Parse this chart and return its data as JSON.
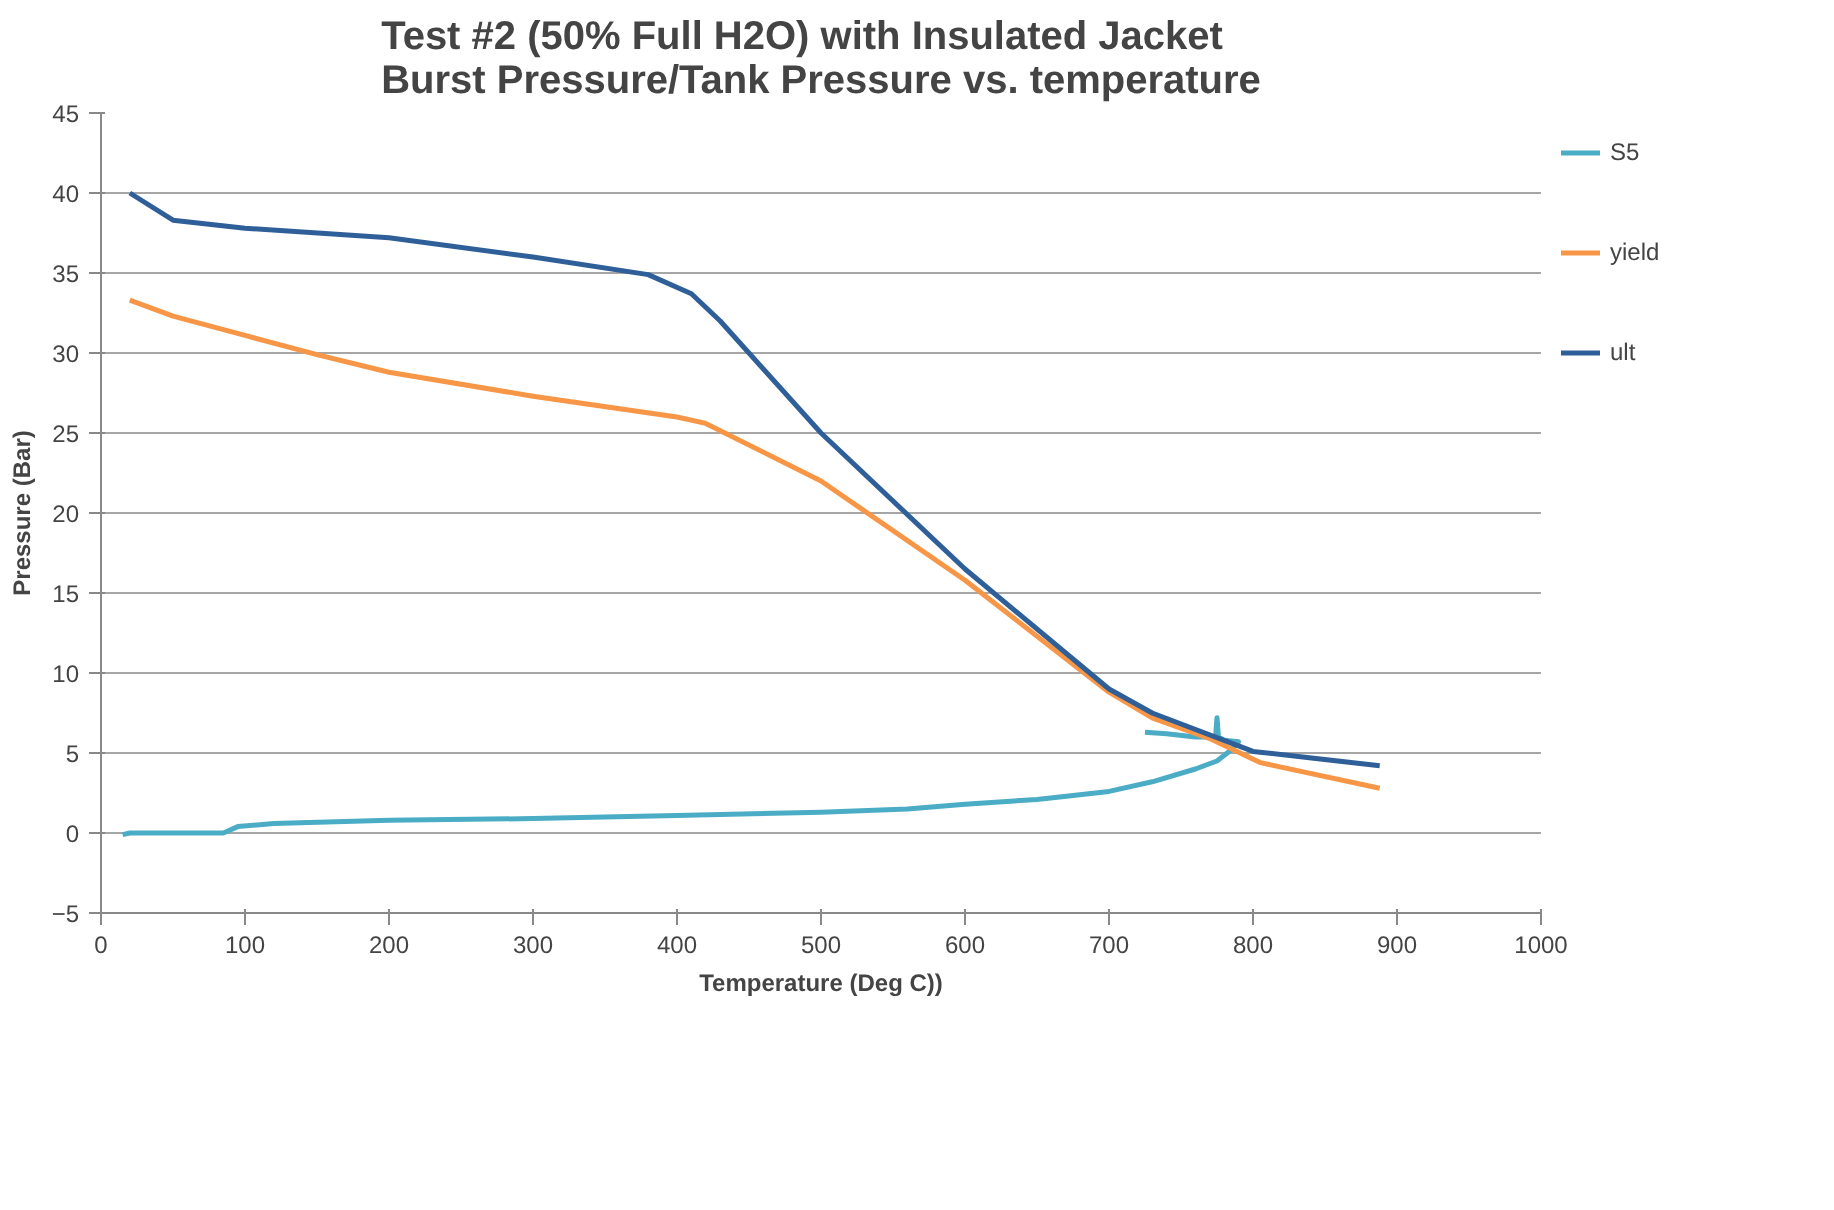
{
  "chart_data": {
    "type": "line",
    "title": "Test #2 (50% Full H2O) with Insulated Jacket\nBurst Pressure/Tank Pressure vs. temperature",
    "xlabel": "Temperature (Deg C))",
    "ylabel": "Pressure (Bar)",
    "xlim": [
      0,
      1000
    ],
    "xticks": [
      0,
      100,
      200,
      300,
      400,
      500,
      600,
      700,
      800,
      900,
      1000
    ],
    "ylim": [
      -5,
      45
    ],
    "yticks": [
      -5,
      0,
      5,
      10,
      15,
      20,
      25,
      30,
      35,
      40,
      45
    ],
    "grid": "y",
    "legend": "right",
    "line_style": "solid",
    "series": [
      {
        "name": "S5",
        "color": "#4bacc6",
        "x": [
          15,
          20,
          85,
          95,
          120,
          200,
          300,
          400,
          500,
          560,
          600,
          650,
          700,
          730,
          760,
          775,
          785,
          790,
          780,
          776,
          775,
          774,
          760,
          740,
          725
        ],
        "values": [
          -0.1,
          0,
          0,
          0.4,
          0.6,
          0.8,
          0.9,
          1.1,
          1.3,
          1.5,
          1.8,
          2.1,
          2.6,
          3.2,
          4.0,
          4.5,
          5.2,
          5.7,
          5.8,
          6.0,
          7.2,
          6.0,
          6.0,
          6.2,
          6.3
        ]
      },
      {
        "name": "yield",
        "color": "#f79646",
        "x": [
          20,
          50,
          100,
          150,
          200,
          300,
          400,
          420,
          500,
          600,
          700,
          730,
          770,
          805,
          888
        ],
        "values": [
          33.3,
          32.3,
          31.1,
          29.9,
          28.8,
          27.3,
          26,
          25.6,
          22,
          15.8,
          8.8,
          7.2,
          5.9,
          4.4,
          2.8
        ]
      },
      {
        "name": "ult",
        "color": "#2f5f98",
        "x": [
          20,
          50,
          100,
          200,
          300,
          380,
          410,
          430,
          500,
          600,
          700,
          730,
          800,
          888
        ],
        "values": [
          40,
          38.3,
          37.8,
          37.2,
          36,
          34.9,
          33.7,
          32,
          25,
          16.5,
          9,
          7.5,
          5.1,
          4.2
        ]
      }
    ]
  }
}
